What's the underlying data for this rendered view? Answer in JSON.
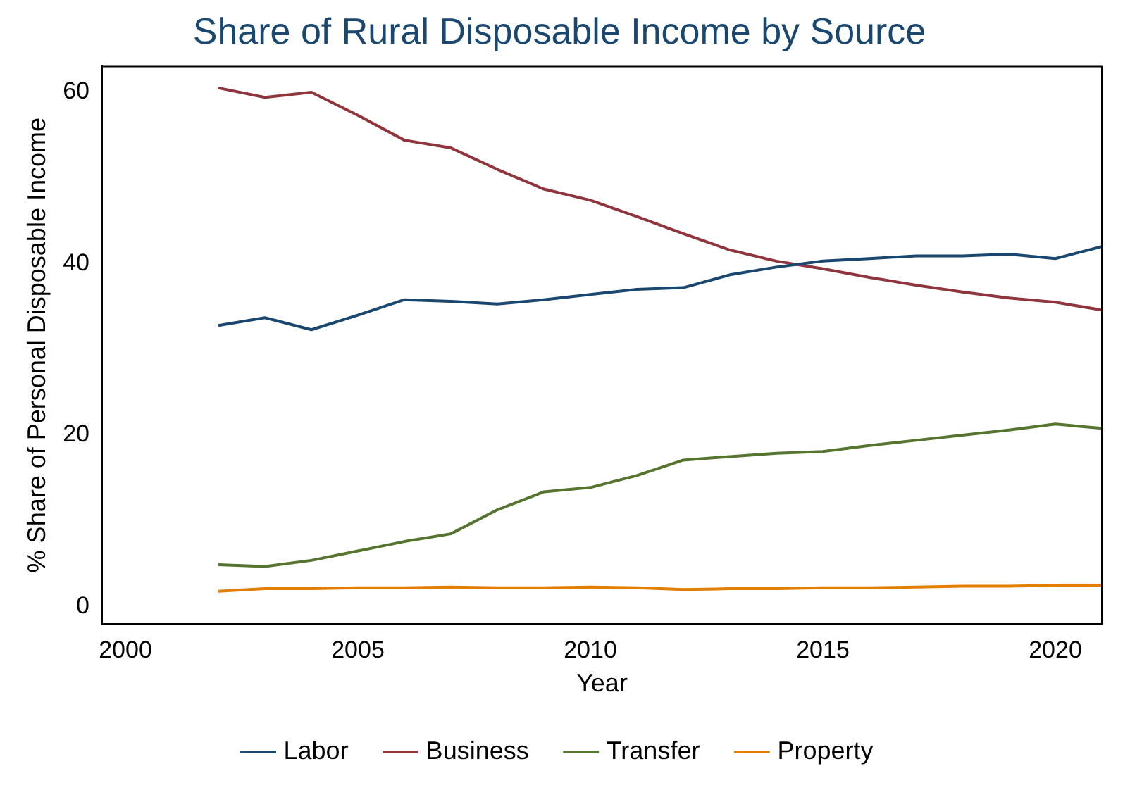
{
  "chart_data": {
    "type": "line",
    "title": "Share of Rural Disposable Income by Source",
    "xlabel": "Year",
    "ylabel": "% Share of Personal Disposable Income",
    "x": [
      2002,
      2003,
      2004,
      2005,
      2006,
      2007,
      2008,
      2009,
      2010,
      2011,
      2012,
      2013,
      2014,
      2015,
      2016,
      2017,
      2018,
      2019,
      2020,
      2021
    ],
    "series": [
      {
        "name": "Labor",
        "color": "#1a476f",
        "values": [
          32.8,
          33.7,
          32.3,
          34.0,
          35.8,
          35.6,
          35.3,
          35.8,
          36.4,
          37.0,
          37.2,
          38.7,
          39.6,
          40.3,
          40.6,
          40.9,
          40.9,
          41.1,
          40.6,
          42.0
        ]
      },
      {
        "name": "Business",
        "color": "#90353b",
        "values": [
          60.5,
          59.4,
          60.0,
          57.3,
          54.4,
          53.5,
          51.0,
          48.7,
          47.4,
          45.5,
          43.5,
          41.6,
          40.3,
          39.4,
          38.4,
          37.5,
          36.7,
          36.0,
          35.5,
          34.6
        ]
      },
      {
        "name": "Transfer",
        "color": "#55752f",
        "values": [
          4.9,
          4.7,
          5.4,
          6.5,
          7.6,
          8.5,
          11.3,
          13.4,
          13.9,
          15.3,
          17.1,
          17.5,
          17.9,
          18.1,
          18.8,
          19.4,
          20.0,
          20.6,
          21.3,
          20.8
        ]
      },
      {
        "name": "Property",
        "color": "#e37e00",
        "values": [
          1.8,
          2.1,
          2.1,
          2.2,
          2.2,
          2.3,
          2.2,
          2.2,
          2.3,
          2.2,
          2.0,
          2.1,
          2.1,
          2.2,
          2.2,
          2.3,
          2.4,
          2.4,
          2.5,
          2.5
        ]
      }
    ],
    "xlim": [
      1999.5,
      2021
    ],
    "xticks": [
      2000,
      2005,
      2010,
      2015,
      2020
    ],
    "ylim": [
      -2,
      63
    ],
    "yticks": [
      0,
      20,
      40,
      60
    ],
    "grid": false,
    "legend": "bottom",
    "marker": "none",
    "line_style": "solid"
  }
}
